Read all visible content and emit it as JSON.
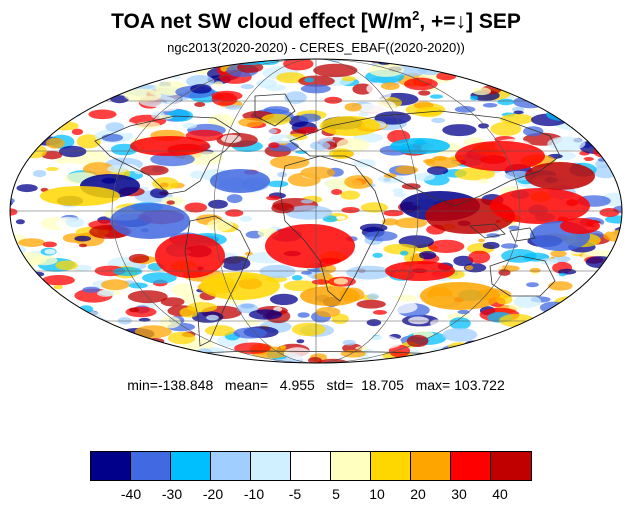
{
  "title": {
    "main": "TOA net SW cloud effect [W/m",
    "sup": "2",
    "rest": ", +=↓]  SEP"
  },
  "subtitle": "ngc2013(2020-2020) - CERES_EBAF((2020-2020))",
  "stats": "min=-138.848   mean=   4.955   std=  18.705   max= 103.722",
  "colorbar": {
    "colors": [
      "#00008b",
      "#4169e1",
      "#00bfff",
      "#a0cfff",
      "#d0f0ff",
      "#ffffff",
      "#ffffc0",
      "#ffd700",
      "#ffa500",
      "#ff0000",
      "#c00000"
    ],
    "labels": [
      "-40",
      "-30",
      "-20",
      "-10",
      "-5",
      "5",
      "10",
      "20",
      "30",
      "40"
    ]
  },
  "map": {
    "projection": "Mollweide",
    "field": "TOA net SW cloud effect difference",
    "month": "SEP"
  }
}
